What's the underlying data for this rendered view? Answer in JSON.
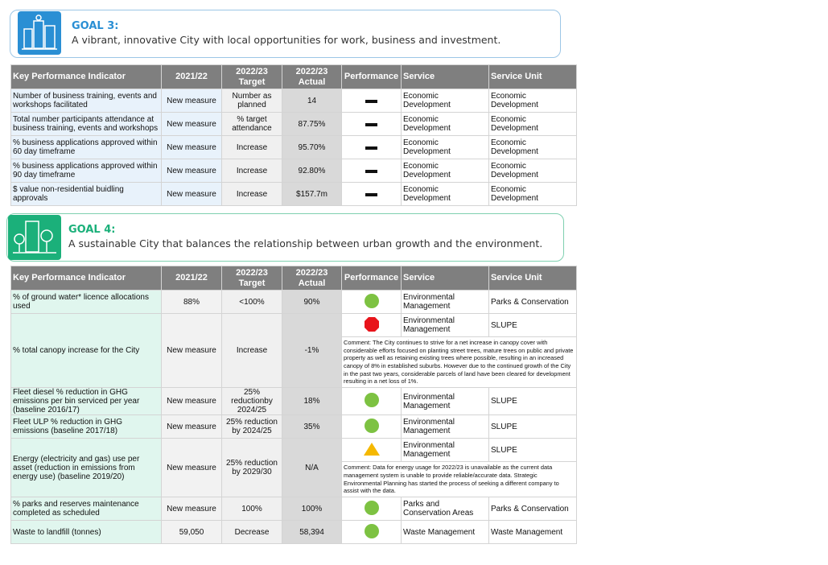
{
  "goal3": {
    "title": "GOAL 3:",
    "subtitle": "A vibrant, innovative City with local opportunities for work, business and investment."
  },
  "table1": {
    "header": [
      "Key Performance Indicator",
      "2021/22",
      "2022/23 Target",
      "2022/23 Actual",
      "Performance",
      "Service",
      "Service Unit"
    ],
    "rows": [
      {
        "kpi": "Number of business training, events and workshops facilitated",
        "prev": "New measure",
        "target": "Number as planned",
        "actual": "14",
        "service": "Economic Development",
        "unit": "Economic Development"
      },
      {
        "kpi": "Total number participants attendance at business training, events and workshops",
        "prev": "New measure",
        "target": "% target attendance",
        "actual": "87.75%",
        "service": "Economic Development",
        "unit": "Economic Development"
      },
      {
        "kpi": "% business applications approved within 60 day timeframe",
        "prev": "New measure",
        "target": "Increase",
        "actual": "95.70%",
        "service": "Economic Development",
        "unit": "Economic Development"
      },
      {
        "kpi": "% business applications approved within 90 day timeframe",
        "prev": "New measure",
        "target": "Increase",
        "actual": "92.80%",
        "service": "Economic Development",
        "unit": "Economic Development"
      },
      {
        "kpi": "$ value non-residential buidling approvals",
        "prev": "New measure",
        "target": "Increase",
        "actual": "$157.7m",
        "service": "Economic Development",
        "unit": "Economic Development"
      }
    ]
  },
  "goal4": {
    "title": "GOAL 4:",
    "subtitle": "A sustainable City that balances the relationship between urban growth and the environment."
  },
  "table2": {
    "header": [
      "Key Performance Indicator",
      "2021/22",
      "2022/23 Target",
      "2022/23 Actual",
      "Performance",
      "Service",
      "Service Unit"
    ],
    "rows": [
      {
        "kpi": "% of ground water* licence allocations used",
        "prev": "88%",
        "target": "<100%",
        "actual": "90%",
        "service": "Environmental Management",
        "unit": "Parks & Conservation"
      },
      {
        "kpi": "% total canopy increase for the City",
        "prev": "New measure",
        "target": "Increase",
        "actual": "-1%",
        "service": "Environmental Management",
        "unit": "SLUPE",
        "comment": "Comment: The City continues to strive for a net increase in canopy cover with considerable efforts focused on planting street trees, mature trees on public and private property as well as retaining existing trees where possible, resulting in an increased canopy of 8% in established suburbs. However due to the continued growth of the City in the past two years, considerable parcels of land have been cleared for development resulting in a net loss of 1%."
      },
      {
        "kpi": "Fleet diesel % reduction in GHG emissions per bin serviced per year (baseline 2016/17)",
        "prev": "New measure",
        "target": "25% reductionby 2024/25",
        "actual": "18%",
        "service": "Environmental Management",
        "unit": "SLUPE"
      },
      {
        "kpi": "Fleet ULP % reduction in GHG emissions (baseline 2017/18)",
        "prev": "New measure",
        "target": "25% reduction by 2024/25",
        "actual": "35%",
        "service": "Environmental Management",
        "unit": "SLUPE"
      },
      {
        "kpi": "Energy (electricity and gas) use per asset (reduction in emissions from energy use) (baseline 2019/20)",
        "prev": "New measure",
        "target": "25% reduction by 2029/30",
        "actual": "N/A",
        "service": "Environmental Management",
        "unit": "SLUPE",
        "comment": "Comment: Data for energy usage for 2022/23 is unavailable as the current data management system is unable to provide reliable/accurate data. Strategic Environmental Planning has started the process of seeking a different company to assist with the data."
      },
      {
        "kpi": "% parks and reserves maintenance completed as scheduled",
        "prev": "New measure",
        "target": "100%",
        "actual": "100%",
        "service": "Parks and Conservation Areas",
        "unit": "Parks & Conservation"
      },
      {
        "kpi": "Waste to landfill (tonnes)",
        "prev": "59,050",
        "target": "Decrease",
        "actual": "58,394",
        "service": "Waste Management",
        "unit": "Waste Management"
      }
    ]
  }
}
